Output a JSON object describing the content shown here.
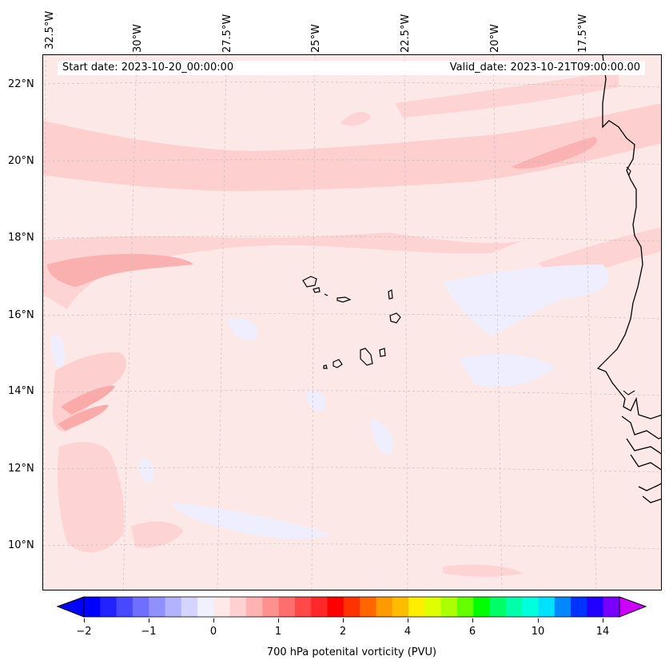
{
  "map": {
    "start_date": "Start date: 2023-10-20_00:00:00",
    "valid_date": "Valid_date: 2023-10-21T09:00:00.00",
    "lon_labels": [
      "32.5°W",
      "30°W",
      "27.5°W",
      "25°W",
      "22.5°W",
      "20°W",
      "17.5°W"
    ],
    "lat_labels": [
      "22°N",
      "20°N",
      "18°N",
      "16°N",
      "14°N",
      "12°N",
      "10°N"
    ],
    "colors": {
      "background": "#fde8e8",
      "light_pink": "#fdd0d0",
      "mid_pink": "#fbb2b2",
      "light_blue": "#eeeeff",
      "coast": "#000000"
    }
  },
  "colorbar": {
    "label": "700 hPa potenital vorticity (PVU)",
    "ticks": [
      "−2",
      "−1",
      "0",
      "1",
      "2",
      "4",
      "6",
      "10",
      "14"
    ],
    "colors": [
      "#0000ff",
      "#2222ff",
      "#4848ff",
      "#6e6eff",
      "#9090ff",
      "#b2b2ff",
      "#d4d4ff",
      "#f0f0ff",
      "#ffe8e8",
      "#ffd0d0",
      "#ffb2b2",
      "#ff9090",
      "#ff6e6e",
      "#ff4848",
      "#ff2828",
      "#ff0000",
      "#ff3300",
      "#ff6600",
      "#ff9900",
      "#ffbb00",
      "#ffee00",
      "#ddff00",
      "#aaff00",
      "#66ff00",
      "#00ff00",
      "#00ff66",
      "#00ffaa",
      "#00ffdd",
      "#00e0ff",
      "#0088ff",
      "#0033ff",
      "#2200ff",
      "#7700ff"
    ],
    "over_color": "#cc00ff",
    "under_color": "#0000ff"
  }
}
